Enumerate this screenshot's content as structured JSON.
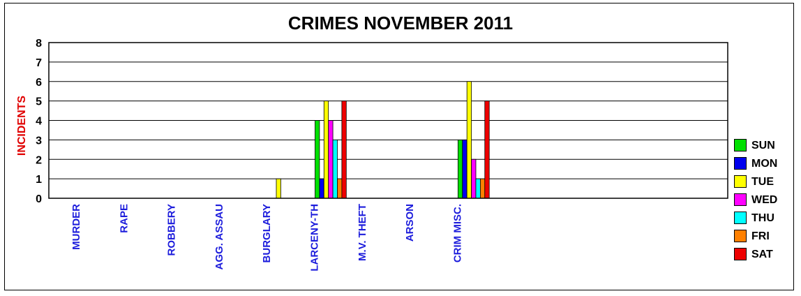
{
  "chart_data": {
    "type": "bar",
    "title": "CRIMES NOVEMBER 2011",
    "xlabel": "",
    "ylabel": "INCIDENTS",
    "ylim": [
      0,
      8
    ],
    "yticks": [
      0,
      1,
      2,
      3,
      4,
      5,
      6,
      7,
      8
    ],
    "grid": "horizontal",
    "legend_position": "right",
    "categories": [
      "MURDER",
      "RAPE",
      "ROBBERY",
      "AGG. ASSAU",
      "BURGLARY",
      "LARCENY-TH",
      "M.V. THEFT",
      "ARSON",
      "CRIM MISC."
    ],
    "series": [
      {
        "name": "SUN",
        "color": "#00e000",
        "values": [
          0,
          0,
          0,
          0,
          0,
          4,
          0,
          0,
          3
        ]
      },
      {
        "name": "MON",
        "color": "#0000ee",
        "values": [
          0,
          0,
          0,
          0,
          0,
          1,
          0,
          0,
          3
        ]
      },
      {
        "name": "TUE",
        "color": "#ffff00",
        "values": [
          0,
          0,
          0,
          0,
          1,
          5,
          0,
          0,
          6
        ]
      },
      {
        "name": "WED",
        "color": "#ff00ff",
        "values": [
          0,
          0,
          0,
          0,
          0,
          4,
          0,
          0,
          2
        ]
      },
      {
        "name": "THU",
        "color": "#00ffff",
        "values": [
          0,
          0,
          0,
          0,
          0,
          3,
          0,
          0,
          1
        ]
      },
      {
        "name": "FRI",
        "color": "#ff8000",
        "values": [
          0,
          0,
          0,
          0,
          0,
          1,
          0,
          0,
          1
        ]
      },
      {
        "name": "SAT",
        "color": "#ee0000",
        "values": [
          0,
          0,
          0,
          0,
          0,
          5,
          0,
          0,
          5
        ]
      }
    ]
  }
}
